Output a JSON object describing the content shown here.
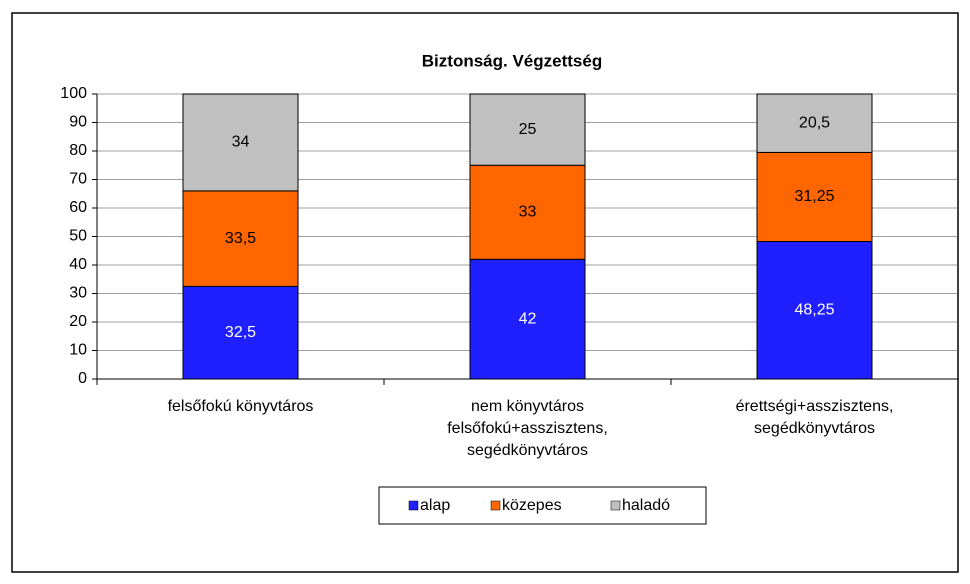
{
  "chart_data": {
    "type": "stacked_bar",
    "title": "Biztonság. Végzettség",
    "categories": [
      "felsőfokú könyvtáros",
      "nem könyvtáros\nfelsőfokú+asszisztens,\nsegédkönyvtáros",
      "érettségi+asszisztens,\nsegédkönyvtáros"
    ],
    "series": [
      {
        "name": "alap",
        "color": "#1f1fff",
        "label_color": "#ffffff",
        "values": [
          32.5,
          42,
          48.25
        ],
        "value_labels": [
          "32,5",
          "42",
          "48,25"
        ]
      },
      {
        "name": "közepes",
        "color": "#ff6600",
        "label_color": "#000000",
        "values": [
          33.5,
          33,
          31.25
        ],
        "value_labels": [
          "33,5",
          "33",
          "31,25"
        ]
      },
      {
        "name": "haladó",
        "color": "#c0c0c0",
        "label_color": "#000000",
        "values": [
          34,
          25,
          20.5
        ],
        "value_labels": [
          "34",
          "25",
          "20,5"
        ]
      }
    ],
    "ylim": [
      0,
      100
    ],
    "yticks": [
      0,
      10,
      20,
      30,
      40,
      50,
      60,
      70,
      80,
      90,
      100
    ],
    "grid": true,
    "legend": "bottom"
  }
}
